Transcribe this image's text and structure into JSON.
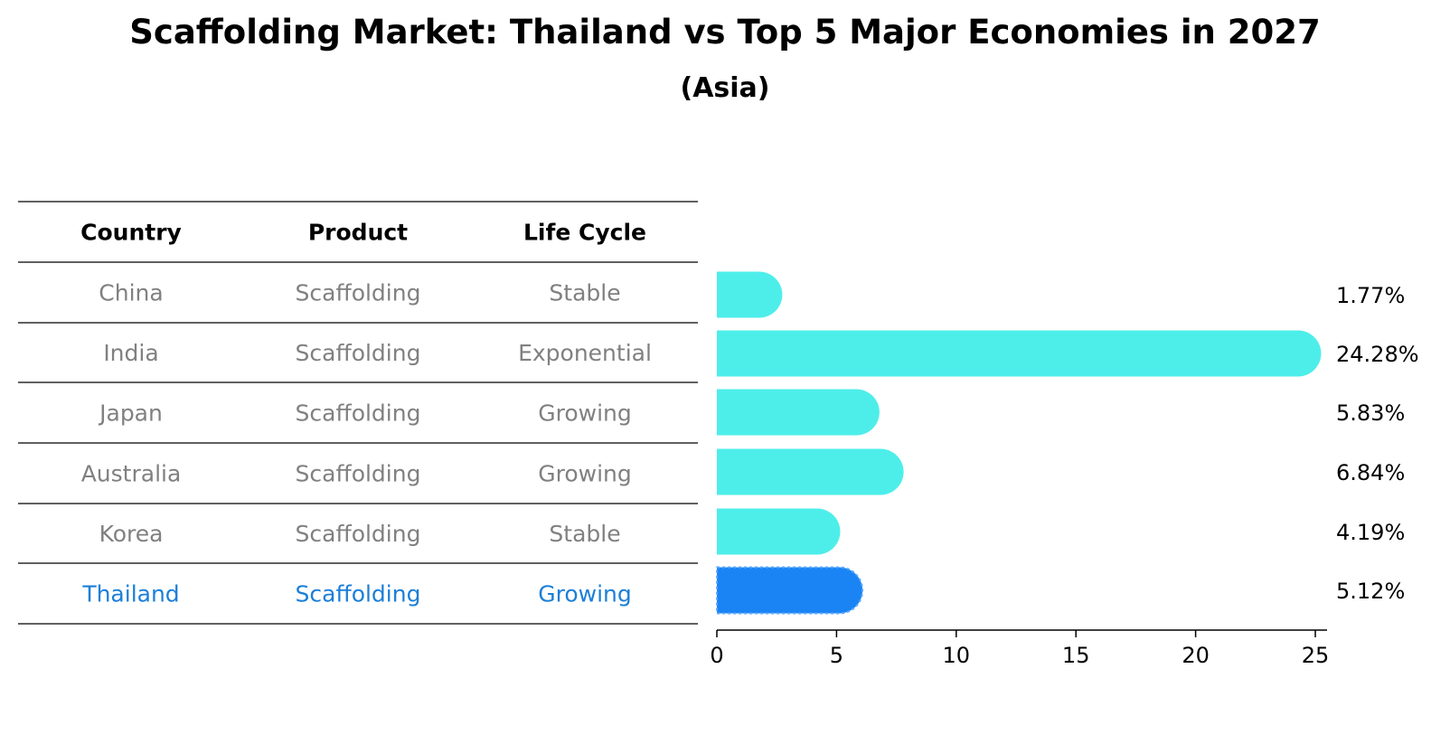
{
  "chart_data": {
    "type": "bar",
    "orientation": "horizontal",
    "title": "Scaffolding Market: Thailand vs Top 5 Major Economies in 2027",
    "subtitle": "(Asia)",
    "table": {
      "columns": [
        "Country",
        "Product",
        "Life Cycle"
      ],
      "rows": [
        [
          "China",
          "Scaffolding",
          "Stable"
        ],
        [
          "India",
          "Scaffolding",
          "Exponential"
        ],
        [
          "Japan",
          "Scaffolding",
          "Growing"
        ],
        [
          "Australia",
          "Scaffolding",
          "Growing"
        ],
        [
          "Korea",
          "Scaffolding",
          "Stable"
        ],
        [
          "Thailand",
          "Scaffolding",
          "Growing"
        ]
      ],
      "highlight_row": 5
    },
    "categories": [
      "China",
      "India",
      "Japan",
      "Australia",
      "Korea",
      "Thailand"
    ],
    "values": [
      1.77,
      24.28,
      5.83,
      6.84,
      4.19,
      5.12
    ],
    "value_labels": [
      "1.77%",
      "24.28%",
      "5.83%",
      "6.84%",
      "4.19%",
      "5.12%"
    ],
    "xlim": [
      0,
      25.5
    ],
    "xticks": [
      0,
      5,
      10,
      15,
      20,
      25
    ],
    "colors": {
      "bar": "#4deeea",
      "highlight": "#1a84f5",
      "highlight_text": "#1b7fd8",
      "cell_text": "#808080"
    }
  }
}
